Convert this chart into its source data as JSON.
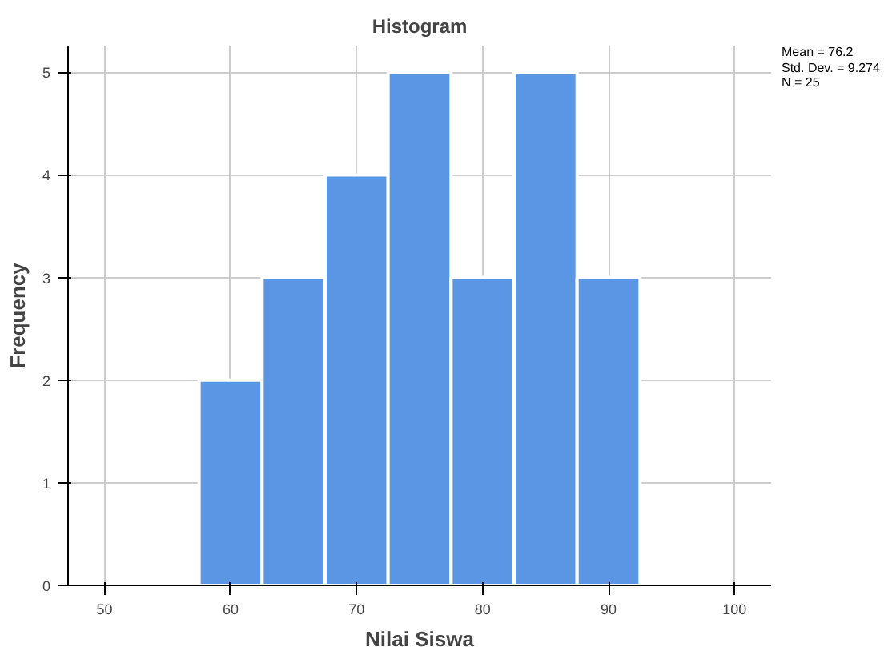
{
  "chart_data": {
    "type": "histogram",
    "title": "Histogram",
    "xlabel": "Nilai Siswa",
    "ylabel": "Frequency",
    "bins": [
      57.5,
      62.5,
      67.5,
      72.5,
      77.5,
      82.5,
      87.5,
      92.5
    ],
    "values": [
      2,
      3,
      4,
      5,
      3,
      5,
      3
    ],
    "color": "#5a96e3",
    "xlim": [
      47.1,
      102.9
    ],
    "xticks": [
      50,
      60,
      70,
      80,
      90,
      100
    ],
    "ylim": [
      0,
      5.26
    ],
    "yticks": [
      0,
      1,
      2,
      3,
      4,
      5
    ],
    "grid": true,
    "annotations": [
      "Mean = 76.2",
      "Std. Dev. = 9.274",
      "N = 25"
    ]
  }
}
